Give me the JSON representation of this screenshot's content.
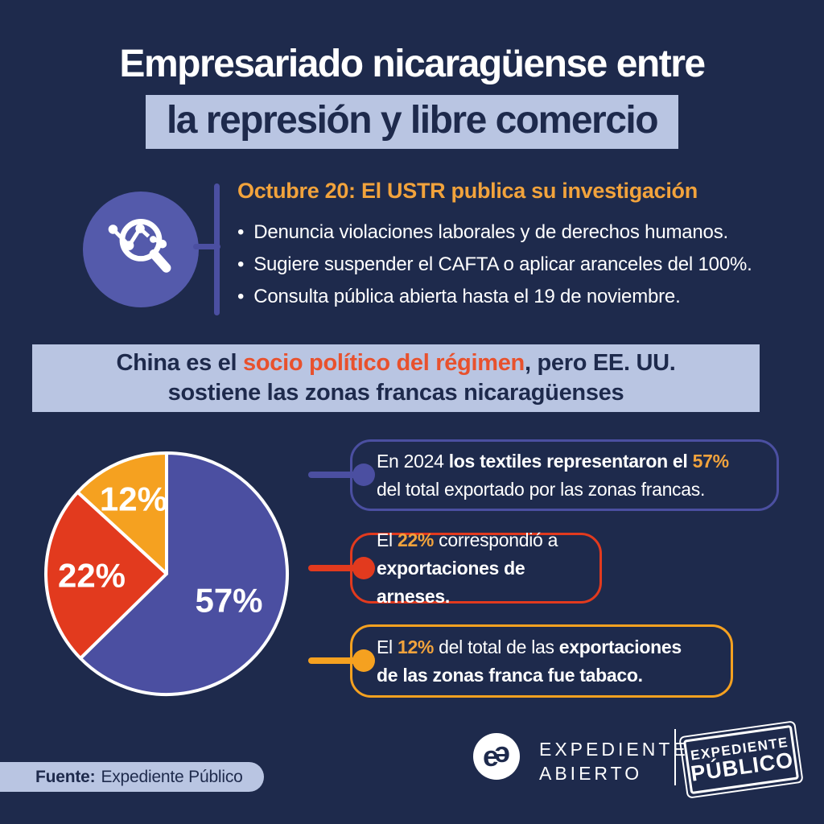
{
  "colors": {
    "navy": "#1e2a4c",
    "light_blue": "#b9c5e2",
    "purple": "#4b4fa1",
    "purple_icon": "#545aab",
    "red": "#e23a1e",
    "orange": "#f5a120",
    "heading_orange": "#f2a33c",
    "highlight_red": "#e8512d",
    "white": "#ffffff"
  },
  "title": {
    "line1": "Empresariado nicaragüense entre",
    "line2": "la represión y libre comercio"
  },
  "investigation": {
    "heading": "Octubre 20: El USTR publica su investigación",
    "bullets": [
      "Denuncia violaciones laborales y de derechos humanos.",
      "Sugiere suspender el CAFTA o aplicar aranceles del 100%.",
      "Consulta pública abierta hasta el 19 de noviembre."
    ]
  },
  "banner": {
    "line1_segments": [
      {
        "text": "China es el "
      },
      {
        "text": "socio político del régimen",
        "color": "#e8512d"
      },
      {
        "text": ", pero EE. UU."
      }
    ],
    "line2": "sostiene las zonas francas nicaragüenses"
  },
  "chart_data": {
    "type": "pie",
    "labels": [
      "Textiles",
      "Arneses",
      "Tabaco"
    ],
    "values": [
      57,
      22,
      12
    ],
    "unit": "%",
    "display_labels": [
      "57%",
      "22%",
      "12%"
    ],
    "colors": [
      "#4b4fa1",
      "#e23a1e",
      "#f5a120"
    ],
    "separator_color": "#ffffff",
    "label_color": "#ffffff",
    "start_angle_deg": 0,
    "direction": "clockwise",
    "label_radius": [
      0.56,
      0.62,
      0.68
    ],
    "legend_position": "none"
  },
  "callouts": {
    "textiles": {
      "segments": [
        {
          "text": "En 2024 "
        },
        {
          "text": "los textiles representaron el ",
          "bold": true
        },
        {
          "text": "57%",
          "bold": true,
          "color": "#f2a33c"
        },
        {
          "br": true
        },
        {
          "text": "del total exportado por las zonas francas."
        }
      ]
    },
    "arneses": {
      "segments": [
        {
          "text": "El "
        },
        {
          "text": "22%",
          "bold": true,
          "color": "#f2a33c"
        },
        {
          "text": " correspondió a"
        },
        {
          "br": true
        },
        {
          "text": "exportaciones de arneses.",
          "bold": true
        }
      ]
    },
    "tabaco": {
      "segments": [
        {
          "text": "El "
        },
        {
          "text": "12%",
          "bold": true,
          "color": "#f2a33c"
        },
        {
          "text": " del total de las "
        },
        {
          "text": "exportaciones",
          "bold": true
        },
        {
          "br": true
        },
        {
          "text": "de las zonas franca fue tabaco.",
          "bold": true
        }
      ]
    }
  },
  "footer": {
    "fuente_label": "Fuente:",
    "fuente_value": "Expediente Público",
    "monogram_first": "e",
    "monogram_second": "e",
    "org_line1": "EXPEDIENTE",
    "org_line2": "ABIERTO",
    "stamp_line1": "EXPEDIENTE",
    "stamp_line2": "PÚBLICO"
  }
}
